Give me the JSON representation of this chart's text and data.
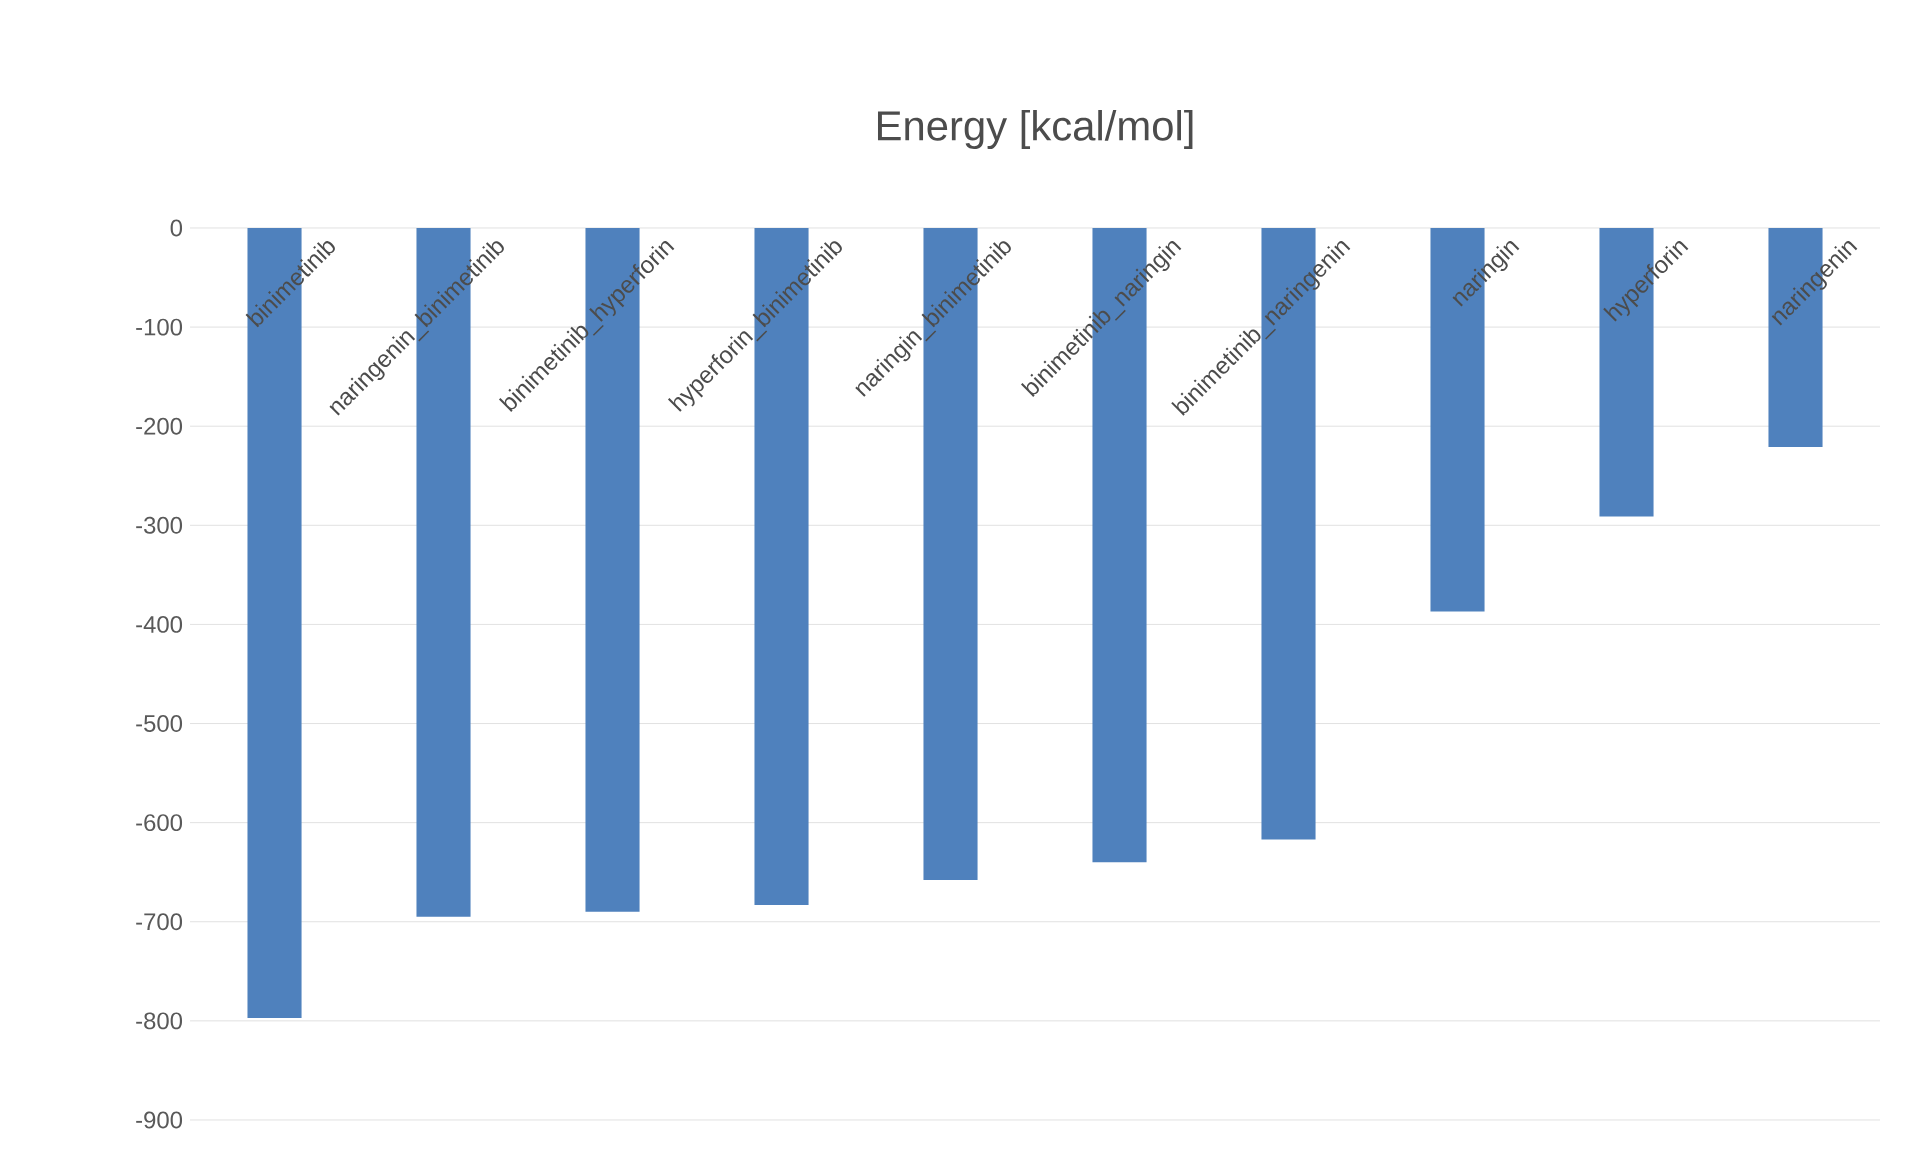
{
  "chart_data": {
    "type": "bar",
    "title": "Energy [kcal/mol]",
    "categories": [
      "binimetinib",
      "naringenin_binimetinib",
      "binimetinib_hyperforin",
      "hyperforin_binimetinib",
      "naringin_binimetinib",
      "binimetinib_naringin",
      "binimetinib_naringenin",
      "naringin",
      "hyperforin",
      "naringenin"
    ],
    "values": [
      -797,
      -695,
      -690,
      -683,
      -658,
      -640,
      -617,
      -387,
      -291,
      -221
    ],
    "color": "#4f81bd",
    "ylim": [
      -900,
      0
    ],
    "yticks": [
      -900,
      -800,
      -700,
      -600,
      -500,
      -400,
      -300,
      -200,
      -100,
      0
    ],
    "grid": "y"
  }
}
